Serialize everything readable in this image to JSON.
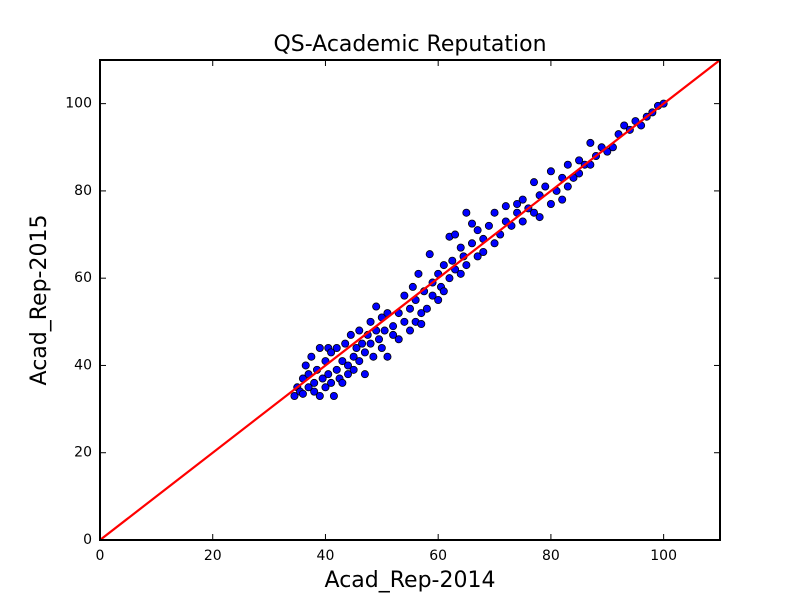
{
  "chart_data": {
    "type": "scatter",
    "title": "QS-Academic Reputation",
    "x_label": "Acad_Rep-2014",
    "y_label": "Acad_Rep-2015",
    "xlim": [
      0,
      110
    ],
    "ylim": [
      0,
      110
    ],
    "xticks": [
      0,
      20,
      40,
      60,
      80,
      100
    ],
    "yticks": [
      0,
      20,
      40,
      60,
      80,
      100
    ],
    "grid": false,
    "color": "#0000ff",
    "x": [
      34.5,
      35,
      35.5,
      36,
      36,
      36.5,
      37,
      37,
      37.5,
      38,
      38,
      38.5,
      39,
      39,
      39.5,
      40,
      40,
      40.5,
      40.5,
      41,
      41,
      41.5,
      42,
      42,
      42.5,
      43,
      43,
      43.5,
      44,
      44,
      44.5,
      45,
      45,
      45.5,
      46,
      46,
      46.5,
      47,
      47,
      47.5,
      48,
      48,
      48.5,
      49,
      49,
      49.5,
      50,
      50,
      50.5,
      51,
      51,
      52,
      52,
      53,
      53,
      54,
      54,
      55,
      55,
      55.5,
      56,
      56,
      56.5,
      57,
      57,
      57.5,
      58,
      58.5,
      59,
      59,
      60,
      60,
      60.5,
      61,
      61,
      62,
      62,
      62.5,
      63,
      63,
      64,
      64,
      64.5,
      65,
      65,
      66,
      66,
      67,
      67,
      68,
      68,
      69,
      70,
      70,
      71,
      72,
      72,
      73,
      74,
      74,
      75,
      75,
      76,
      77,
      77,
      78,
      78,
      79,
      80,
      80,
      81,
      82,
      82,
      83,
      83,
      84,
      85,
      85,
      86,
      87,
      87,
      88,
      89,
      90,
      91,
      92,
      93,
      94,
      95,
      96,
      97,
      98,
      99,
      100
    ],
    "y": [
      33,
      35,
      34,
      37,
      33.5,
      40,
      35,
      38,
      42,
      34,
      36,
      39,
      44,
      33,
      37,
      35,
      41,
      38,
      44,
      36,
      43,
      33,
      39,
      44,
      37,
      41,
      36,
      45,
      40,
      38,
      47,
      42,
      39,
      44,
      48,
      41,
      45,
      43,
      38,
      47,
      50,
      45,
      42,
      48,
      53.5,
      46,
      51,
      44,
      48,
      42,
      52,
      47,
      49,
      46,
      52,
      50,
      56,
      48,
      53,
      58,
      50,
      55,
      61,
      52,
      49.5,
      57,
      53,
      65.5,
      56,
      59,
      55,
      61,
      58,
      63,
      57,
      60,
      69.5,
      64,
      62,
      70,
      61,
      67,
      65,
      63,
      75,
      68,
      72.5,
      65,
      71,
      66,
      69,
      72,
      68,
      75,
      70,
      73,
      76.5,
      72,
      75,
      77,
      73,
      78,
      76,
      82,
      75,
      79,
      74,
      81,
      77,
      84.5,
      80,
      78,
      83,
      86,
      81,
      83,
      84,
      87,
      86,
      91,
      86,
      88,
      90,
      89,
      90,
      93,
      95,
      94,
      96,
      95,
      97,
      98,
      99.5,
      100
    ],
    "reference_line": {
      "x": [
        0,
        110
      ],
      "y": [
        0,
        110
      ],
      "color": "#ff0000"
    }
  }
}
